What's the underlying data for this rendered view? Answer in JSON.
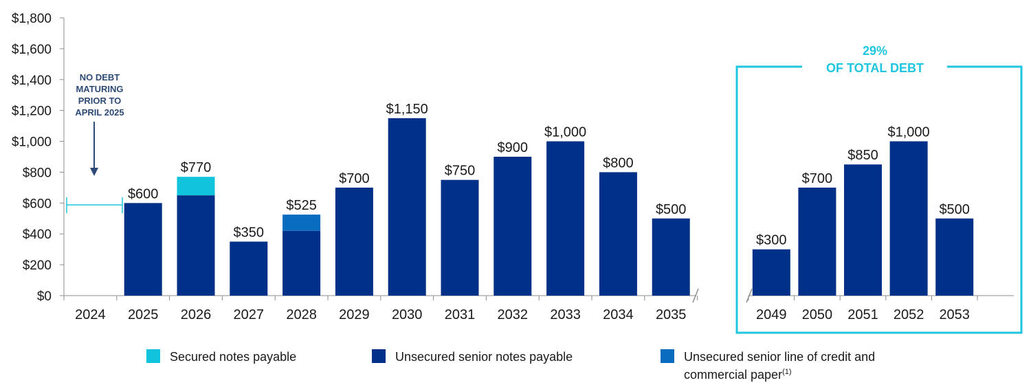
{
  "colors": {
    "secured": "#12c3dc",
    "unsecured_notes": "#003087",
    "line_of_credit": "#0a6cbf",
    "highlight": "#1ec6e0",
    "note_text": "#2c4a75"
  },
  "note": {
    "lines": [
      "NO DEBT",
      "MATURING",
      "PRIOR TO",
      "APRIL 2025"
    ]
  },
  "callout": {
    "line1": "29%",
    "line2": "OF TOTAL DEBT"
  },
  "legend": {
    "secured": "Secured notes payable",
    "unsecured_notes": "Unsecured senior notes payable",
    "line_of_credit_line1": "Unsecured senior line of credit and",
    "line_of_credit_line2": "commercial paper",
    "line_of_credit_superscript": "(1)"
  },
  "chart_data": {
    "type": "bar",
    "stacked": true,
    "ylim": [
      0,
      1800
    ],
    "yticks": [
      "$0",
      "$200",
      "$400",
      "$600",
      "$800",
      "$1,000",
      "$1,200",
      "$1,400",
      "$1,600",
      "$1,800"
    ],
    "panels": [
      {
        "categories": [
          "2024",
          "2025",
          "2026",
          "2027",
          "2028",
          "2029",
          "2030",
          "2031",
          "2032",
          "2033",
          "2034",
          "2035"
        ],
        "series": [
          {
            "name": "Unsecured senior notes payable",
            "values": [
              0,
              600,
              650,
              350,
              420,
              700,
              1150,
              750,
              900,
              1000,
              800,
              500
            ]
          },
          {
            "name": "Secured notes payable",
            "values": [
              0,
              0,
              120,
              0,
              0,
              0,
              0,
              0,
              0,
              0,
              0,
              0
            ]
          },
          {
            "name": "Unsecured senior line of credit and commercial paper",
            "values": [
              0,
              0,
              0,
              0,
              105,
              0,
              0,
              0,
              0,
              0,
              0,
              0
            ]
          }
        ],
        "totals_labels": [
          "",
          "$600",
          "$770",
          "$350",
          "$525",
          "$700",
          "$1,150",
          "$750",
          "$900",
          "$1,000",
          "$800",
          "$500"
        ]
      },
      {
        "categories": [
          "2049",
          "2050",
          "2051",
          "2052",
          "2053"
        ],
        "series": [
          {
            "name": "Unsecured senior notes payable",
            "values": [
              300,
              700,
              850,
              1000,
              500
            ]
          }
        ],
        "totals_labels": [
          "$300",
          "$700",
          "$850",
          "$1,000",
          "$500"
        ]
      }
    ]
  }
}
